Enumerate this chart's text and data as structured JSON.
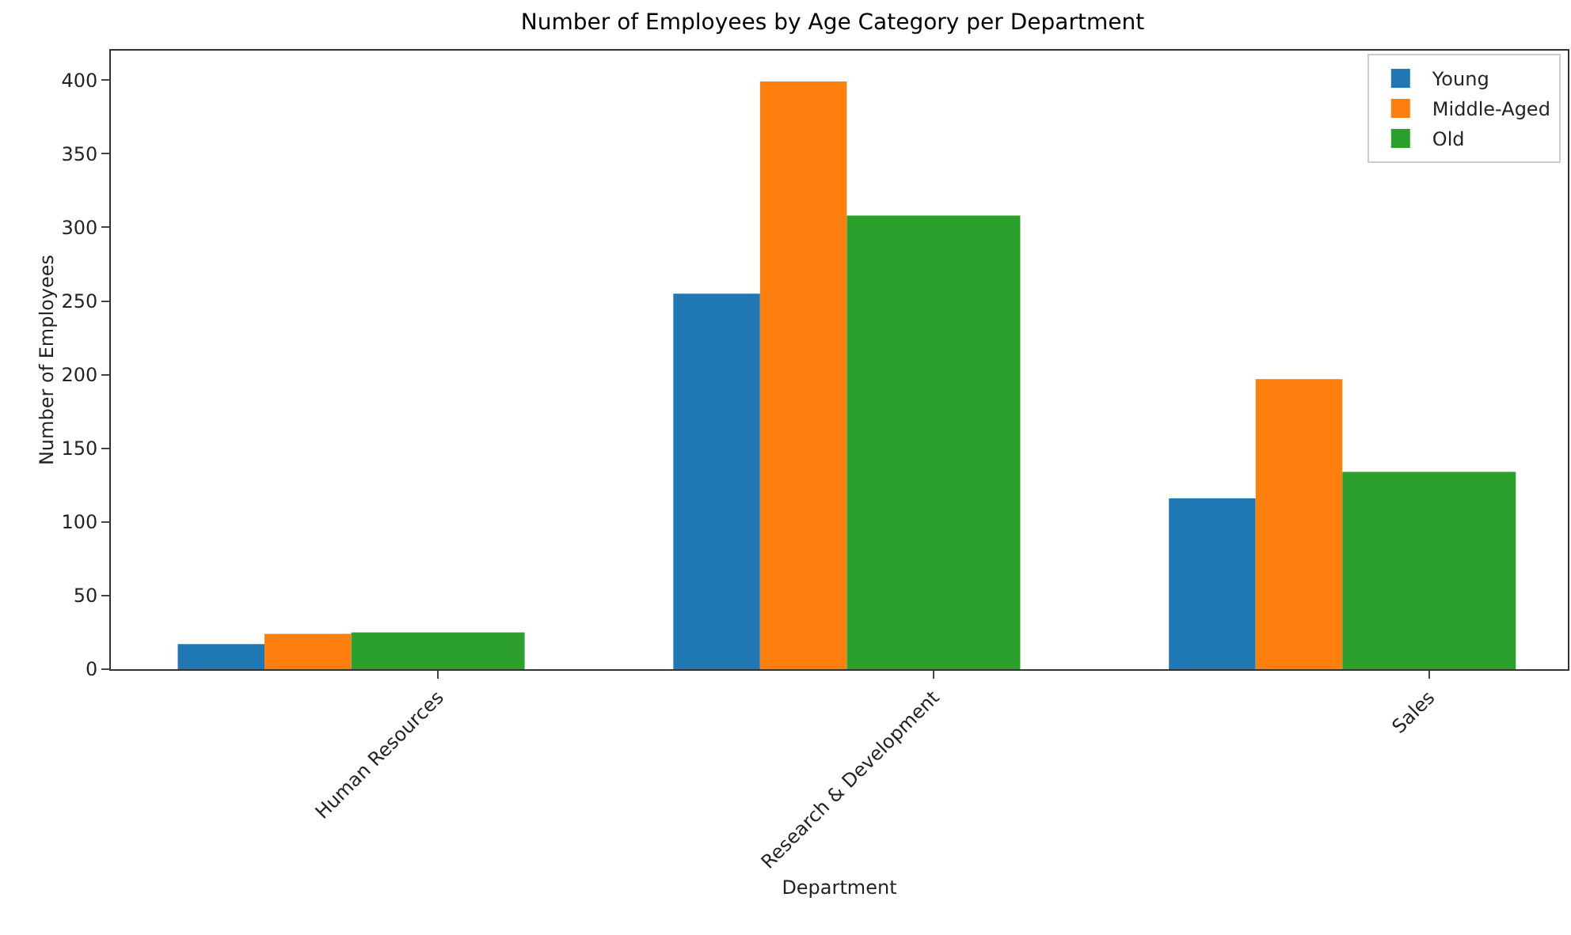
{
  "chart_data": {
    "type": "bar",
    "title": "Number of Employees by Age Category per Department",
    "xlabel": "Department",
    "ylabel": "Number of Employees",
    "categories": [
      "Human Resources",
      "Research & Development",
      "Sales"
    ],
    "series": [
      {
        "name": "Young",
        "color": "#1f77b4",
        "values": [
          17,
          255,
          116
        ]
      },
      {
        "name": "Middle-Aged",
        "color": "#ff7f0e",
        "values": [
          24,
          399,
          197
        ]
      },
      {
        "name": "Old",
        "color": "#2ca02c",
        "values": [
          25,
          308,
          134
        ]
      }
    ],
    "ylim": [
      0,
      420
    ],
    "yticks": [
      0,
      50,
      100,
      150,
      200,
      250,
      300,
      350,
      400
    ],
    "grid": false,
    "legend": "top right"
  }
}
